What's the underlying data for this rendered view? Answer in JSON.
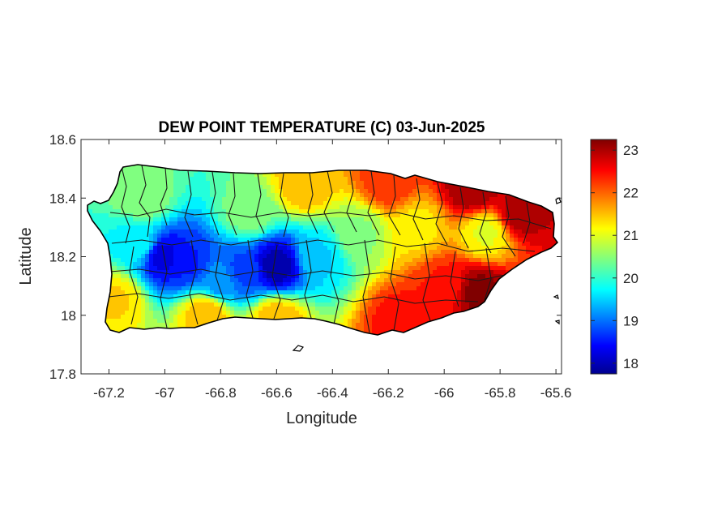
{
  "chart_data": {
    "type": "heatmap",
    "title": "DEW POINT TEMPERATURE (C) 03-Jun-2025",
    "xlabel": "Longitude",
    "ylabel": "Latitude",
    "xlim": [
      -67.3,
      -65.58
    ],
    "ylim": [
      17.8,
      18.6
    ],
    "x_ticks": [
      -67.2,
      -67,
      -66.8,
      -66.6,
      -66.4,
      -66.2,
      -66,
      -65.8,
      -65.6
    ],
    "x_tick_labels": [
      "-67.2",
      "-67",
      "-66.8",
      "-66.6",
      "-66.4",
      "-66.2",
      "-66",
      "-65.8",
      "-65.6"
    ],
    "y_ticks": [
      17.8,
      18,
      18.2,
      18.4,
      18.6
    ],
    "y_tick_labels": [
      "17.8",
      "18",
      "18.2",
      "18.4",
      "18.6"
    ],
    "colorbar": {
      "range": [
        17.75,
        23.25
      ],
      "ticks": [
        18,
        19,
        20,
        21,
        22,
        23
      ],
      "tick_labels": [
        "18",
        "19",
        "20",
        "21",
        "22",
        "23"
      ],
      "colormap": "jet"
    },
    "field_points": [
      {
        "lon": -67.0,
        "lat": 18.2,
        "value": 18.3
      },
      {
        "lon": -66.92,
        "lat": 18.18,
        "value": 18.6
      },
      {
        "lon": -66.6,
        "lat": 18.17,
        "value": 18.0
      },
      {
        "lon": -66.72,
        "lat": 18.15,
        "value": 18.8
      },
      {
        "lon": -66.8,
        "lat": 18.12,
        "value": 19.2
      },
      {
        "lon": -66.45,
        "lat": 18.2,
        "value": 19.6
      },
      {
        "lon": -67.1,
        "lat": 18.25,
        "value": 19.8
      },
      {
        "lon": -66.7,
        "lat": 18.35,
        "value": 20.5
      },
      {
        "lon": -67.08,
        "lat": 18.4,
        "value": 20.6
      },
      {
        "lon": -66.3,
        "lat": 18.28,
        "value": 20.6
      },
      {
        "lon": -67.18,
        "lat": 18.05,
        "value": 21.4
      },
      {
        "lon": -66.85,
        "lat": 18.0,
        "value": 21.6
      },
      {
        "lon": -66.6,
        "lat": 17.98,
        "value": 21.6
      },
      {
        "lon": -66.5,
        "lat": 18.45,
        "value": 21.6
      },
      {
        "lon": -66.1,
        "lat": 18.3,
        "value": 21.3
      },
      {
        "lon": -65.85,
        "lat": 18.28,
        "value": 21.1
      },
      {
        "lon": -66.15,
        "lat": 17.98,
        "value": 22.5
      },
      {
        "lon": -66.2,
        "lat": 18.45,
        "value": 22.3
      },
      {
        "lon": -66.0,
        "lat": 18.1,
        "value": 22.4
      },
      {
        "lon": -65.9,
        "lat": 18.43,
        "value": 23.1
      },
      {
        "lon": -65.73,
        "lat": 18.35,
        "value": 23.0
      },
      {
        "lon": -65.88,
        "lat": 18.08,
        "value": 23.2
      }
    ]
  }
}
